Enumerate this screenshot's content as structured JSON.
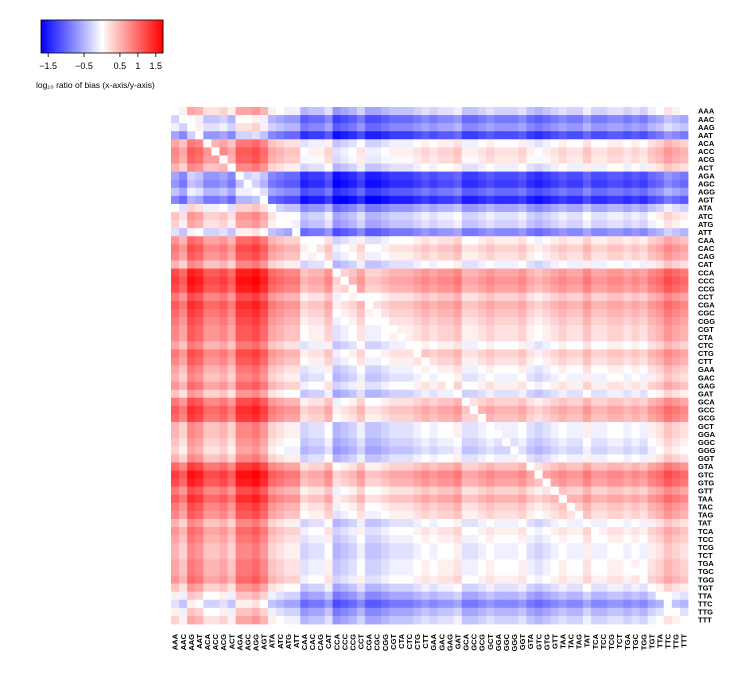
{
  "chart_data": {
    "type": "heatmap",
    "labels": [
      "AAA",
      "AAC",
      "AAG",
      "AAT",
      "ACA",
      "ACC",
      "ACG",
      "ACT",
      "AGA",
      "AGC",
      "AGG",
      "AGT",
      "ATA",
      "ATC",
      "ATG",
      "ATT",
      "CAA",
      "CAC",
      "CAG",
      "CAT",
      "CCA",
      "CCC",
      "CCG",
      "CCT",
      "CGA",
      "CGC",
      "CGG",
      "CGT",
      "CTA",
      "CTC",
      "CTG",
      "CTT",
      "GAA",
      "GAC",
      "GAG",
      "GAT",
      "GCA",
      "GCC",
      "GCG",
      "GCT",
      "GGA",
      "GGC",
      "GGG",
      "GGT",
      "GTA",
      "GTC",
      "GTG",
      "GTT",
      "TAA",
      "TAC",
      "TAG",
      "TAT",
      "TCA",
      "TCC",
      "TCG",
      "TCT",
      "TGA",
      "TGC",
      "TGG",
      "TGT",
      "TTA",
      "TTC",
      "TTG",
      "TTT"
    ],
    "row_effect": [
      0.0,
      -0.6,
      -0.4,
      -0.9,
      0.3,
      0.5,
      0.45,
      0.2,
      -0.9,
      -1.0,
      -0.7,
      -1.1,
      -0.3,
      0.1,
      0.0,
      -0.5,
      0.4,
      0.6,
      0.5,
      0.2,
      0.9,
      1.0,
      0.9,
      0.6,
      0.8,
      0.7,
      0.6,
      0.5,
      0.5,
      0.3,
      0.6,
      0.5,
      0.3,
      0.2,
      0.4,
      0.1,
      0.6,
      0.8,
      0.7,
      0.2,
      0.2,
      0.1,
      0.0,
      0.2,
      0.7,
      1.0,
      0.9,
      0.6,
      0.8,
      0.6,
      0.5,
      0.2,
      0.4,
      0.3,
      0.2,
      0.2,
      0.3,
      0.3,
      0.4,
      0.1,
      -0.2,
      -0.5,
      -0.2,
      0.0
    ],
    "col_effect": [
      0.3,
      0.1,
      0.6,
      0.5,
      0.2,
      0.2,
      0.3,
      0.1,
      0.6,
      0.6,
      0.7,
      0.5,
      0.1,
      0.0,
      -0.1,
      -0.1,
      -0.5,
      -0.4,
      -0.4,
      -0.2,
      -0.7,
      -0.6,
      -0.5,
      -0.3,
      -0.6,
      -0.6,
      -0.5,
      -0.4,
      -0.4,
      -0.4,
      -0.3,
      -0.2,
      -0.3,
      -0.2,
      -0.2,
      -0.1,
      -0.4,
      -0.4,
      -0.3,
      -0.2,
      -0.3,
      -0.3,
      -0.3,
      -0.2,
      -0.4,
      -0.5,
      -0.4,
      -0.3,
      -0.2,
      -0.3,
      -0.3,
      -0.1,
      -0.3,
      -0.3,
      -0.2,
      -0.2,
      -0.3,
      -0.2,
      -0.3,
      -0.1,
      0.0,
      0.2,
      0.1,
      0.0
    ],
    "value_range": [
      -1.7,
      1.7
    ],
    "colorscale": {
      "low": "#0000ff",
      "mid": "#ffffff",
      "high": "#ff0000"
    },
    "colorbar_ticks": [
      -1.5,
      -0.5,
      0.5,
      1,
      1.5
    ],
    "colorbar_tick_labels": [
      "−1.5",
      "−0.5",
      "0.5",
      "1",
      "1.5"
    ],
    "colorbar_label": "log₁₀ ratio of bias (x-axis/y-axis)"
  }
}
